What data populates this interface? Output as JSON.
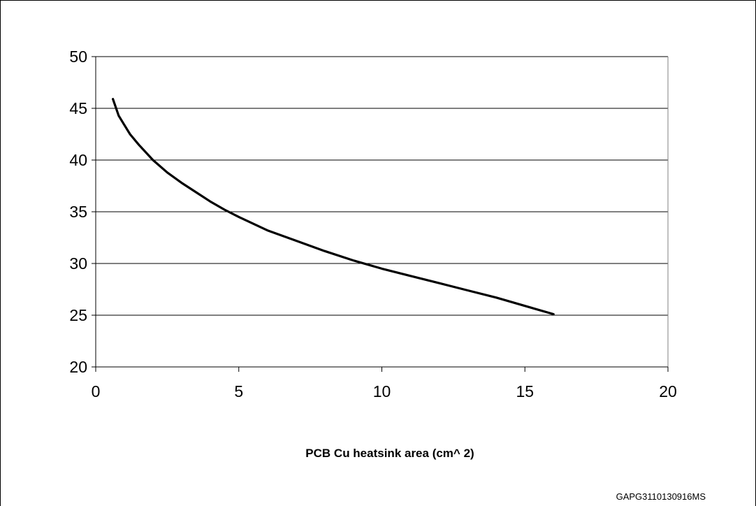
{
  "chart_data": {
    "type": "line",
    "title": "",
    "xlabel": "PCB Cu heatsink area (cm^ 2)",
    "ylabel": "",
    "xlim": [
      0,
      20
    ],
    "ylim": [
      20,
      50
    ],
    "xticks": [
      "0",
      "5",
      "10",
      "15",
      "20"
    ],
    "yticks": [
      "20",
      "25",
      "30",
      "35",
      "40",
      "45",
      "50"
    ],
    "grid": "horizontal",
    "legend": "none",
    "series": [
      {
        "color": "#000000",
        "x": [
          0.6,
          0.8,
          1.0,
          1.2,
          1.5,
          2.0,
          2.5,
          3.0,
          3.5,
          4.0,
          4.5,
          5.0,
          6.0,
          7.0,
          8.0,
          9.0,
          10.0,
          11.0,
          12.0,
          13.0,
          14.0,
          15.0,
          16.0
        ],
        "values": [
          45.9,
          44.3,
          43.4,
          42.5,
          41.5,
          40.0,
          38.8,
          37.8,
          36.9,
          36.0,
          35.2,
          34.5,
          33.2,
          32.2,
          31.2,
          30.3,
          29.5,
          28.8,
          28.1,
          27.4,
          26.7,
          25.9,
          25.1
        ]
      }
    ]
  },
  "figure_code": "GAPG3110130916MS"
}
